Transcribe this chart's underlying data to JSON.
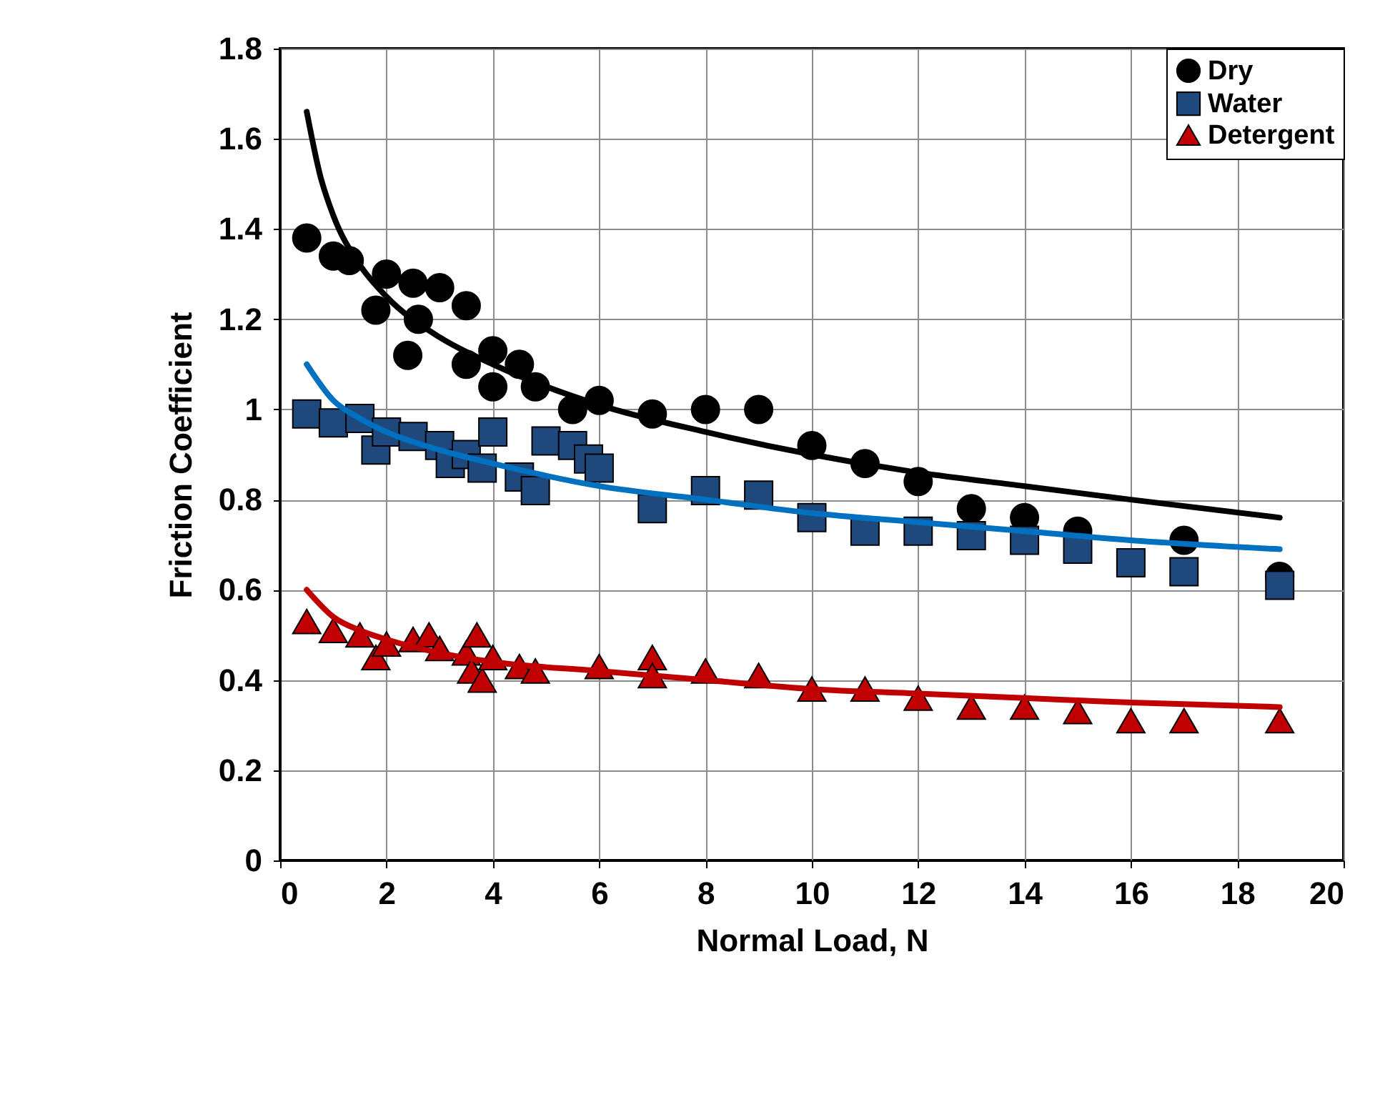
{
  "chart_data": {
    "type": "scatter",
    "xlabel": "Normal Load, N",
    "ylabel": "Friction Coefficient",
    "xlim": [
      0,
      20
    ],
    "xticks": [
      0,
      2,
      4,
      6,
      8,
      10,
      12,
      14,
      16,
      18,
      20
    ],
    "ylim": [
      0,
      1.8
    ],
    "yticks": [
      0,
      0.2,
      0.4,
      0.6,
      0.8,
      1,
      1.2,
      1.4,
      1.6,
      1.8
    ],
    "grid": true,
    "legend": "top right",
    "series": [
      {
        "name": "Dry",
        "color": "#000000",
        "marker": "circle",
        "x": [
          0.5,
          1,
          1.3,
          1.8,
          2,
          2.4,
          2.5,
          2.6,
          3,
          3.5,
          3.5,
          4,
          4,
          4.5,
          4.8,
          5.5,
          6,
          7,
          8,
          9,
          10,
          11,
          12,
          13,
          14,
          15,
          17,
          18.8
        ],
        "values": [
          1.38,
          1.34,
          1.33,
          1.22,
          1.3,
          1.12,
          1.28,
          1.2,
          1.27,
          1.23,
          1.1,
          1.13,
          1.05,
          1.1,
          1.05,
          1.0,
          1.02,
          0.99,
          1.0,
          1.0,
          0.92,
          0.88,
          0.84,
          0.78,
          0.76,
          0.73,
          0.71,
          0.63
        ]
      },
      {
        "name": "Water",
        "color": "#1f497d",
        "marker": "square",
        "x": [
          0.5,
          1,
          1.5,
          1.8,
          2,
          2.5,
          3,
          3.2,
          3.5,
          3.8,
          4,
          4.5,
          4.8,
          5,
          5.5,
          5.8,
          6,
          7,
          8,
          9,
          10,
          11,
          12,
          13,
          14,
          15,
          16,
          17,
          18.8
        ],
        "values": [
          0.99,
          0.97,
          0.98,
          0.91,
          0.95,
          0.94,
          0.92,
          0.88,
          0.9,
          0.87,
          0.95,
          0.85,
          0.82,
          0.93,
          0.92,
          0.89,
          0.87,
          0.78,
          0.82,
          0.81,
          0.76,
          0.73,
          0.73,
          0.72,
          0.71,
          0.69,
          0.66,
          0.64,
          0.61
        ]
      },
      {
        "name": "Detergent",
        "color": "#c00000",
        "marker": "triangle",
        "x": [
          0.5,
          1,
          1.5,
          1.8,
          2,
          2.5,
          2.8,
          3,
          3.5,
          3.6,
          3.7,
          3.8,
          4,
          4.5,
          4.8,
          6,
          7,
          7,
          8,
          9,
          10,
          11,
          12,
          13,
          14,
          15,
          16,
          17,
          18.8
        ],
        "values": [
          0.53,
          0.51,
          0.5,
          0.45,
          0.48,
          0.49,
          0.5,
          0.47,
          0.46,
          0.42,
          0.5,
          0.4,
          0.45,
          0.43,
          0.42,
          0.43,
          0.45,
          0.41,
          0.42,
          0.41,
          0.38,
          0.38,
          0.36,
          0.34,
          0.34,
          0.33,
          0.31,
          0.31,
          0.31
        ]
      },
      {
        "type": "line",
        "color": "#000000",
        "x": [
          0.5,
          0.75,
          1,
          1.5,
          2,
          3,
          4,
          6,
          8,
          10,
          12,
          14,
          16,
          18.8
        ],
        "values": [
          1.66,
          1.52,
          1.43,
          1.32,
          1.25,
          1.16,
          1.1,
          1.01,
          0.95,
          0.9,
          0.86,
          0.83,
          0.8,
          0.76
        ]
      },
      {
        "type": "line",
        "color": "#0070c0",
        "x": [
          0.5,
          1,
          1.5,
          2,
          3,
          4,
          6,
          8,
          10,
          12,
          14,
          16,
          18.8
        ],
        "values": [
          1.1,
          1.02,
          0.98,
          0.95,
          0.91,
          0.88,
          0.83,
          0.8,
          0.77,
          0.75,
          0.73,
          0.71,
          0.69
        ]
      },
      {
        "type": "line",
        "color": "#c00000",
        "x": [
          0.5,
          1,
          1.5,
          2,
          3,
          4,
          6,
          8,
          10,
          12,
          14,
          16,
          18.8
        ],
        "values": [
          0.6,
          0.54,
          0.51,
          0.49,
          0.46,
          0.44,
          0.42,
          0.4,
          0.38,
          0.37,
          0.36,
          0.35,
          0.34
        ]
      }
    ]
  }
}
